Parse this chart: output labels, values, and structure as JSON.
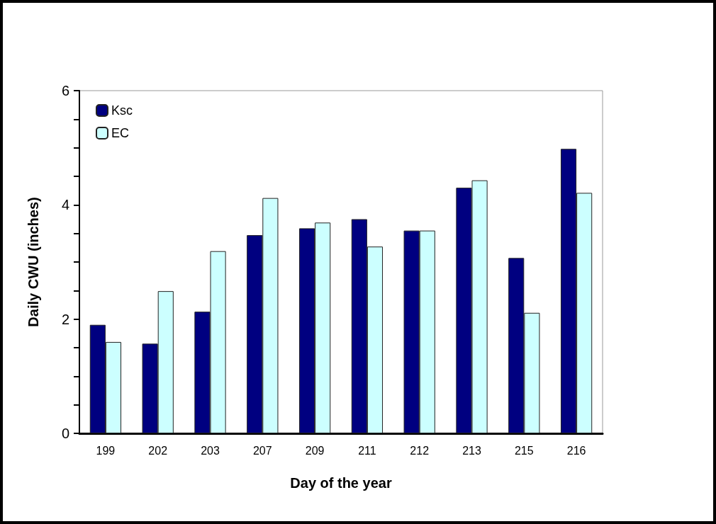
{
  "chart_data": {
    "type": "bar",
    "xlabel": "Day of the year",
    "ylabel": "Daily CWU (inches)",
    "categories": [
      "199",
      "202",
      "203",
      "207",
      "209",
      "211",
      "212",
      "213",
      "215",
      "216"
    ],
    "series": [
      {
        "name": "Ksc",
        "color": "#000080",
        "values": [
          1.9,
          1.57,
          2.13,
          3.47,
          3.59,
          3.75,
          3.55,
          4.3,
          3.07,
          4.98
        ]
      },
      {
        "name": "EC",
        "color": "#ccffff",
        "values": [
          1.6,
          2.49,
          3.19,
          4.12,
          3.69,
          3.27,
          3.55,
          4.43,
          2.11,
          4.21
        ]
      }
    ],
    "ylim": [
      0,
      6
    ],
    "yticks": [
      0,
      {
        "value": 0.5,
        "label": null
      },
      {
        "value": 1,
        "label": null
      },
      {
        "value": 1.5,
        "label": null
      },
      2,
      {
        "value": 2.5,
        "label": null
      },
      {
        "value": 3,
        "label": null
      },
      {
        "value": 3.5,
        "label": null
      },
      4,
      {
        "value": 4.5,
        "label": null
      },
      {
        "value": 5,
        "label": null
      },
      {
        "value": 5.5,
        "label": null
      },
      6
    ],
    "grid": false,
    "legend": "top left"
  }
}
